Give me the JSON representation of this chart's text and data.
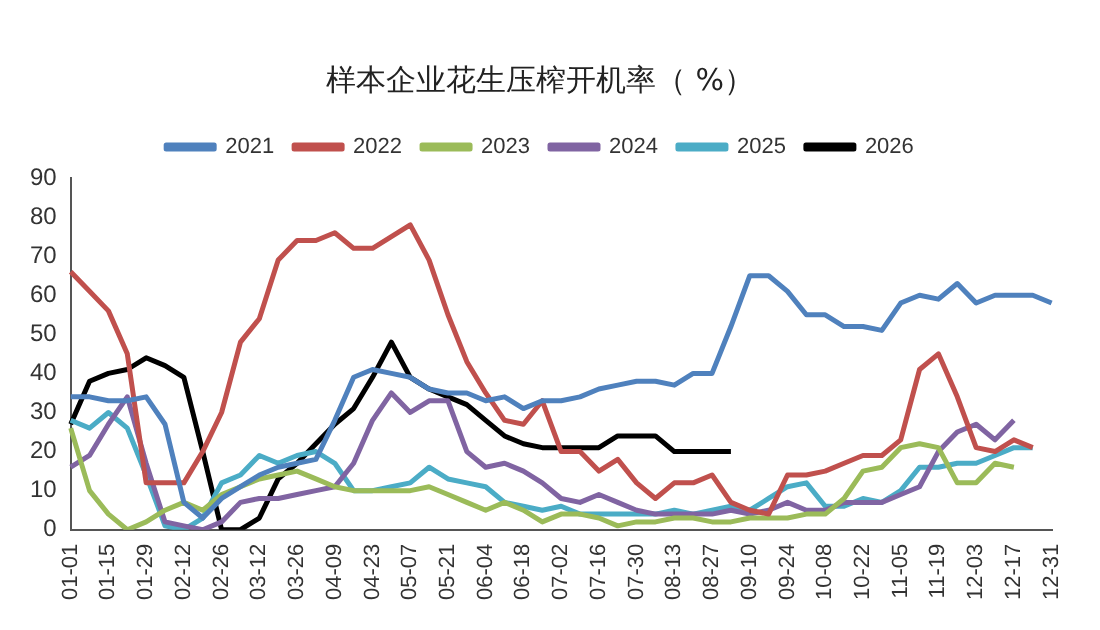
{
  "chart_data": {
    "type": "line",
    "title": "样本企业花生压榨开机率（ %）",
    "categories": [
      "01-01",
      null,
      "01-15",
      null,
      "01-29",
      null,
      "02-12",
      null,
      "02-26",
      null,
      "03-12",
      null,
      "03-26",
      null,
      "04-09",
      null,
      "04-23",
      null,
      "05-07",
      null,
      "05-21",
      null,
      "06-04",
      null,
      "06-18",
      null,
      "07-02",
      null,
      "07-16",
      null,
      "07-30",
      null,
      "08-13",
      null,
      "08-27",
      null,
      "09-10",
      null,
      "09-24",
      null,
      "10-08",
      null,
      "10-22",
      null,
      "11-05",
      null,
      "11-19",
      null,
      "12-03",
      null,
      "12-17",
      null,
      "12-31"
    ],
    "series": [
      {
        "name": "2021",
        "color": "#4f81bd",
        "values": [
          34,
          34,
          33,
          33,
          34,
          27,
          7,
          3,
          8,
          11,
          14,
          16,
          17,
          18,
          28,
          39,
          41,
          40,
          39,
          36,
          35,
          35,
          33,
          34,
          31,
          33,
          33,
          34,
          36,
          37,
          38,
          38,
          37,
          40,
          40,
          52,
          65,
          65,
          61,
          55,
          55,
          52,
          52,
          51,
          58,
          60,
          59,
          63,
          58,
          60,
          60,
          60,
          58
        ]
      },
      {
        "name": "2022",
        "color": "#c0504d",
        "values": [
          66,
          61,
          56,
          45,
          12,
          12,
          12,
          20,
          30,
          48,
          54,
          69,
          74,
          74,
          76,
          72,
          72,
          75,
          78,
          69,
          55,
          43,
          35,
          28,
          27,
          33,
          20,
          20,
          15,
          18,
          12,
          8,
          12,
          12,
          14,
          7,
          5,
          4,
          14,
          14,
          15,
          17,
          19,
          19,
          23,
          41,
          45,
          34,
          21,
          20,
          23,
          21,
          null
        ]
      },
      {
        "name": "2023",
        "color": "#9bbb59",
        "values": [
          26,
          10,
          4,
          0,
          2,
          5,
          7,
          5,
          9,
          11,
          13,
          14,
          15,
          13,
          11,
          10,
          10,
          10,
          10,
          11,
          9,
          7,
          5,
          7,
          5,
          2,
          4,
          4,
          3,
          1,
          2,
          2,
          3,
          3,
          2,
          2,
          3,
          3,
          3,
          4,
          4,
          8,
          15,
          16,
          21,
          22,
          21,
          12,
          12,
          17,
          16,
          null,
          null
        ]
      },
      {
        "name": "2024",
        "color": "#8064a2",
        "values": [
          16,
          19,
          27,
          34,
          17,
          2,
          1,
          0,
          2,
          7,
          8,
          8,
          9,
          10,
          11,
          17,
          28,
          35,
          30,
          33,
          33,
          20,
          16,
          17,
          15,
          12,
          8,
          7,
          9,
          7,
          5,
          4,
          4,
          4,
          4,
          5,
          4,
          5,
          7,
          5,
          5,
          7,
          7,
          7,
          9,
          11,
          20,
          25,
          27,
          23,
          28,
          null,
          null
        ]
      },
      {
        "name": "2025",
        "color": "#4bacc6",
        "values": [
          28,
          26,
          30,
          26,
          14,
          1,
          0,
          3,
          12,
          14,
          19,
          17,
          19,
          20,
          17,
          10,
          10,
          11,
          12,
          16,
          13,
          12,
          11,
          7,
          6,
          5,
          6,
          4,
          4,
          4,
          4,
          4,
          5,
          4,
          5,
          6,
          5,
          8,
          11,
          12,
          6,
          6,
          8,
          7,
          10,
          16,
          16,
          17,
          17,
          19,
          21,
          21,
          null
        ]
      },
      {
        "name": "2026",
        "color": "#000000",
        "values": [
          27,
          38,
          40,
          41,
          44,
          42,
          39,
          20,
          0,
          0,
          3,
          13,
          17,
          22,
          27,
          31,
          39,
          48,
          39,
          36,
          34,
          32,
          28,
          24,
          22,
          21,
          21,
          21,
          21,
          24,
          24,
          24,
          20,
          20,
          20,
          20,
          null,
          null,
          null,
          null,
          null,
          null,
          null,
          null,
          null,
          null,
          null,
          null,
          null,
          null,
          null,
          null,
          null
        ]
      }
    ],
    "ylim": [
      0,
      90
    ],
    "yticks": [
      0,
      10,
      20,
      30,
      40,
      50,
      60,
      70,
      80,
      90
    ],
    "grid": false,
    "legend": "top",
    "marker": "none",
    "line_style": "solid"
  }
}
